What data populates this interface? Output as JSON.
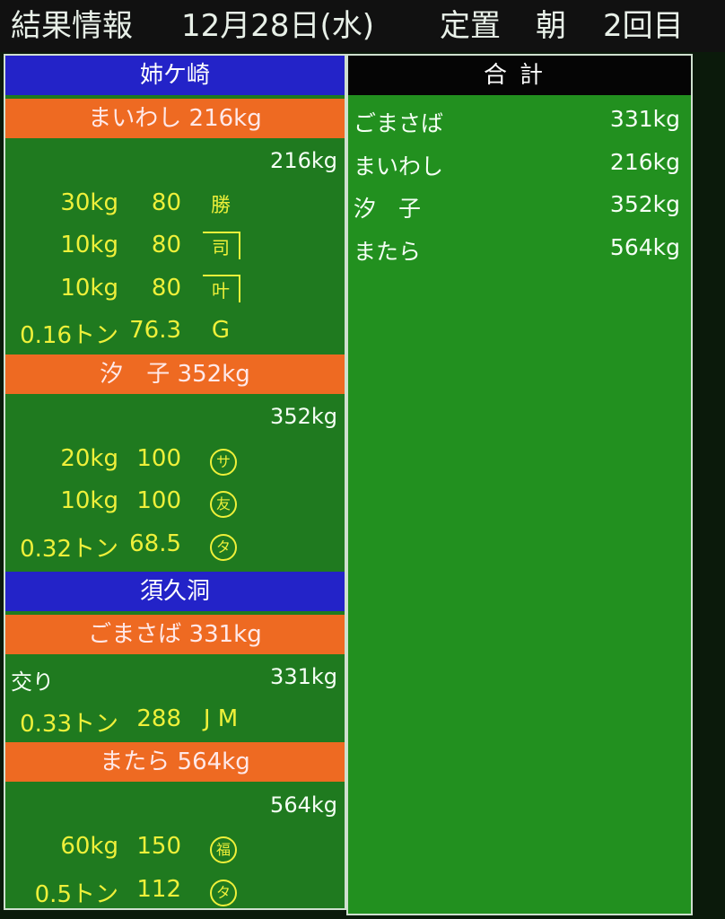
{
  "header": {
    "title": "結果情報",
    "date": "12月28日(水)",
    "type": "定置",
    "session": "朝",
    "round": "2回目"
  },
  "ports": [
    {
      "name": "姉ケ崎",
      "fish": [
        {
          "header": "まいわし 216kg",
          "total": "216kg",
          "label": "",
          "rows": [
            {
              "weight": "30kg",
              "price": "80",
              "mark": "勝",
              "mark_style": "roof"
            },
            {
              "weight": "10kg",
              "price": "80",
              "mark": "司",
              "mark_style": "box"
            },
            {
              "weight": "10kg",
              "price": "80",
              "mark": "叶",
              "mark_style": "box"
            },
            {
              "weight": "0.16トン",
              "price": "76.3",
              "mark": "G",
              "mark_style": "plain"
            }
          ]
        },
        {
          "header": "汐　子 352kg",
          "total": "352kg",
          "label": "",
          "rows": [
            {
              "weight": "20kg",
              "price": "100",
              "mark": "サ",
              "mark_style": "circle"
            },
            {
              "weight": "10kg",
              "price": "100",
              "mark": "友",
              "mark_style": "circle"
            },
            {
              "weight": "0.32トン",
              "price": "68.5",
              "mark": "タ",
              "mark_style": "circle"
            }
          ]
        }
      ]
    },
    {
      "name": "須久洞",
      "fish": [
        {
          "header": "ごまさば 331kg",
          "total": "331kg",
          "label": "交り",
          "rows": [
            {
              "weight": "0.33トン",
              "price": "288",
              "mark": "J M",
              "mark_style": "plain"
            }
          ]
        },
        {
          "header": "またら 564kg",
          "total": "564kg",
          "label": "",
          "rows": [
            {
              "weight": "60kg",
              "price": "150",
              "mark": "福",
              "mark_style": "circle"
            },
            {
              "weight": "0.5トン",
              "price": "112",
              "mark": "タ",
              "mark_style": "circle"
            }
          ]
        }
      ]
    }
  ],
  "summary": {
    "title": "合計",
    "items": [
      {
        "name": "ごまさば",
        "value": "331kg"
      },
      {
        "name": "まいわし",
        "value": "216kg"
      },
      {
        "name": "汐　子",
        "value": "352kg"
      },
      {
        "name": "またら",
        "value": "564kg"
      }
    ]
  },
  "colors": {
    "port_header": "#2323c8",
    "fish_header": "#ee6a22",
    "panel": "#1f7a1f",
    "row_text": "#eef03a"
  }
}
